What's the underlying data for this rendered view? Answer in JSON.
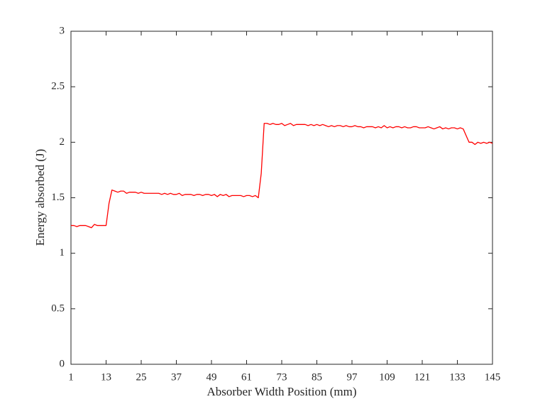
{
  "chart_data": {
    "type": "line",
    "xlabel": "Absorber Width Position (mm)",
    "ylabel": "Energy absorbed (J)",
    "x": [
      1,
      2,
      3,
      4,
      5,
      6,
      7,
      8,
      9,
      10,
      11,
      12,
      13,
      14,
      15,
      16,
      17,
      18,
      19,
      20,
      21,
      22,
      23,
      24,
      25,
      26,
      27,
      28,
      29,
      30,
      31,
      32,
      33,
      34,
      35,
      36,
      37,
      38,
      39,
      40,
      41,
      42,
      43,
      44,
      45,
      46,
      47,
      48,
      49,
      50,
      51,
      52,
      53,
      54,
      55,
      56,
      57,
      58,
      59,
      60,
      61,
      62,
      63,
      64,
      65,
      66,
      67,
      68,
      69,
      70,
      71,
      72,
      73,
      74,
      75,
      76,
      77,
      78,
      79,
      80,
      81,
      82,
      83,
      84,
      85,
      86,
      87,
      88,
      89,
      90,
      91,
      92,
      93,
      94,
      95,
      96,
      97,
      98,
      99,
      100,
      101,
      102,
      103,
      104,
      105,
      106,
      107,
      108,
      109,
      110,
      111,
      112,
      113,
      114,
      115,
      116,
      117,
      118,
      119,
      120,
      121,
      122,
      123,
      124,
      125,
      126,
      127,
      128,
      129,
      130,
      131,
      132,
      133,
      134,
      135,
      136,
      137,
      138,
      139,
      140,
      141,
      142,
      143,
      144,
      145
    ],
    "series": [
      {
        "color": "#ff0000",
        "values": [
          1.25,
          1.25,
          1.24,
          1.25,
          1.25,
          1.25,
          1.24,
          1.23,
          1.26,
          1.25,
          1.25,
          1.25,
          1.25,
          1.45,
          1.57,
          1.56,
          1.55,
          1.56,
          1.56,
          1.54,
          1.55,
          1.55,
          1.55,
          1.54,
          1.55,
          1.54,
          1.54,
          1.54,
          1.54,
          1.54,
          1.54,
          1.53,
          1.54,
          1.53,
          1.54,
          1.53,
          1.53,
          1.54,
          1.52,
          1.53,
          1.53,
          1.53,
          1.52,
          1.53,
          1.53,
          1.52,
          1.53,
          1.53,
          1.52,
          1.53,
          1.51,
          1.53,
          1.52,
          1.53,
          1.51,
          1.52,
          1.52,
          1.52,
          1.52,
          1.51,
          1.52,
          1.52,
          1.51,
          1.52,
          1.5,
          1.72,
          2.17,
          2.17,
          2.16,
          2.17,
          2.16,
          2.16,
          2.17,
          2.15,
          2.16,
          2.17,
          2.15,
          2.16,
          2.16,
          2.16,
          2.16,
          2.15,
          2.16,
          2.15,
          2.16,
          2.15,
          2.16,
          2.15,
          2.14,
          2.15,
          2.14,
          2.15,
          2.15,
          2.14,
          2.15,
          2.14,
          2.14,
          2.15,
          2.14,
          2.14,
          2.13,
          2.14,
          2.14,
          2.14,
          2.13,
          2.14,
          2.13,
          2.15,
          2.13,
          2.14,
          2.13,
          2.14,
          2.14,
          2.13,
          2.14,
          2.13,
          2.13,
          2.14,
          2.14,
          2.13,
          2.13,
          2.13,
          2.14,
          2.13,
          2.12,
          2.13,
          2.14,
          2.12,
          2.13,
          2.12,
          2.13,
          2.13,
          2.12,
          2.13,
          2.12,
          2.06,
          2.0,
          2.0,
          1.98,
          2.0,
          1.99,
          2.0,
          1.99,
          2.0,
          1.99
        ]
      }
    ],
    "xlim": [
      1,
      145
    ],
    "xticks": [
      1,
      13,
      25,
      37,
      49,
      61,
      73,
      85,
      97,
      109,
      121,
      133,
      145
    ],
    "ylim": [
      0,
      3
    ],
    "yticks": [
      0,
      0.5,
      1,
      1.5,
      2,
      2.5,
      3
    ]
  }
}
